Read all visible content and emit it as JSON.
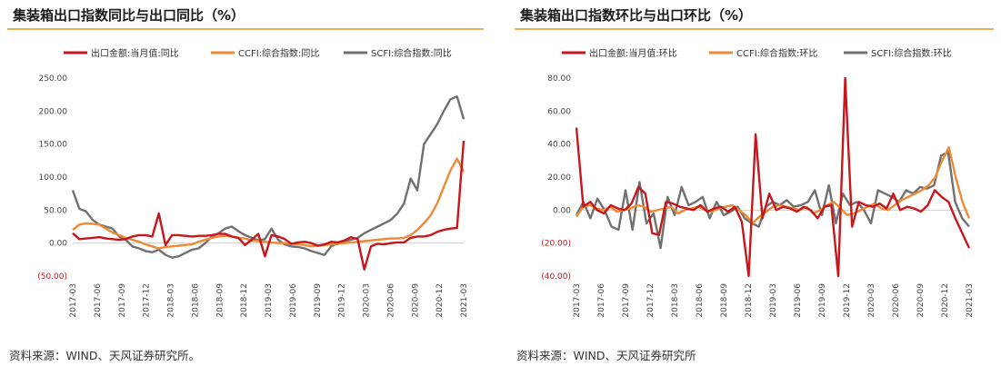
{
  "charts": [
    {
      "title": "集装箱出口指数同比与出口同比（%）",
      "source": "资料来源：WIND、天风证券研究所。"
    },
    {
      "title": "集装箱出口指数环比与出口环比（%）",
      "source": "资料来源：WIND、天风证券研究所"
    }
  ],
  "colors": {
    "export": "#c8161d",
    "ccfi": "#ee8a35",
    "scfi": "#707070",
    "rule": "#e8b25a"
  },
  "chart_data": [
    {
      "type": "line",
      "title": "集装箱出口指数同比与出口同比（%）",
      "x_ticks": [
        "2017-03",
        "2017-06",
        "2017-09",
        "2017-12",
        "2018-03",
        "2018-06",
        "2018-09",
        "2018-12",
        "2019-03",
        "2019-06",
        "2019-09",
        "2019-12",
        "2020-03",
        "2020-06",
        "2020-09",
        "2020-12",
        "2021-03"
      ],
      "ylim": [
        -50,
        250
      ],
      "y_ticks": [
        "(50.00)",
        "0.00",
        "50.00",
        "100.00",
        "150.00",
        "200.00",
        "250.00"
      ],
      "y_tick_values": [
        -50,
        0,
        50,
        100,
        150,
        200,
        250
      ],
      "x_start": "2017-03",
      "legend_position": "top",
      "series": [
        {
          "name": "出口金额:当月值:同比",
          "color_key": "export",
          "values": [
            15,
            6,
            7,
            8,
            9,
            7,
            6,
            5,
            6,
            10,
            12,
            12,
            10,
            45,
            -3,
            12,
            12,
            11,
            10,
            11,
            11,
            12,
            14,
            14,
            10,
            8,
            -3,
            5,
            14,
            -20,
            12,
            10,
            6,
            -1,
            1,
            2,
            0,
            -4,
            -2,
            2,
            1,
            4,
            9,
            6,
            -40,
            -5,
            -1,
            -2,
            0,
            1,
            1,
            8,
            10,
            10,
            12,
            17,
            20,
            22,
            23,
            155
          ]
        },
        {
          "name": "CCFI:综合指数:同比",
          "color_key": "ccfi",
          "values": [
            20,
            28,
            30,
            29,
            28,
            22,
            16,
            12,
            8,
            5,
            2,
            -2,
            -5,
            -8,
            -6,
            -5,
            -4,
            -3,
            -2,
            2,
            5,
            8,
            10,
            11,
            10,
            8,
            7,
            4,
            3,
            2,
            1,
            0,
            0,
            -1,
            -2,
            -3,
            -5,
            -4,
            -3,
            -2,
            -1,
            0,
            1,
            2,
            3,
            4,
            5,
            6,
            7,
            7,
            8,
            12,
            20,
            30,
            42,
            60,
            85,
            110,
            128,
            108
          ]
        },
        {
          "name": "SCFI:综合指数:同比",
          "color_key": "scfi",
          "values": [
            80,
            52,
            48,
            35,
            28,
            25,
            22,
            10,
            5,
            -5,
            -8,
            -12,
            -14,
            -10,
            -18,
            -22,
            -20,
            -15,
            -10,
            -8,
            0,
            10,
            15,
            22,
            25,
            18,
            12,
            8,
            4,
            6,
            22,
            5,
            -2,
            -5,
            -6,
            -8,
            -12,
            -15,
            -18,
            -5,
            0,
            3,
            5,
            8,
            15,
            20,
            25,
            30,
            35,
            45,
            60,
            98,
            80,
            150,
            165,
            180,
            200,
            218,
            222,
            188
          ]
        }
      ]
    },
    {
      "type": "line",
      "title": "集装箱出口指数环比与出口环比（%）",
      "x_ticks": [
        "2017-03",
        "2017-06",
        "2017-09",
        "2017-12",
        "2018-03",
        "2018-06",
        "2018-09",
        "2018-12",
        "2019-03",
        "2019-06",
        "2019-09",
        "2019-12",
        "2020-03",
        "2020-06",
        "2020-09",
        "2020-12",
        "2021-03"
      ],
      "ylim": [
        -40,
        80
      ],
      "y_ticks": [
        "(40.00)",
        "(20.00)",
        "0.00",
        "20.00",
        "40.00",
        "60.00",
        "80.00"
      ],
      "y_tick_values": [
        -40,
        -20,
        0,
        20,
        40,
        60,
        80
      ],
      "x_start": "2017-03",
      "legend_position": "top",
      "series": [
        {
          "name": "出口金额:当月值:环比",
          "color_key": "export",
          "values": [
            50,
            2,
            5,
            0,
            -2,
            3,
            1,
            0,
            4,
            14,
            10,
            -14,
            -15,
            5,
            4,
            2,
            1,
            0,
            3,
            -1,
            1,
            2,
            -1,
            2,
            -7,
            -40,
            46,
            -5,
            10,
            0,
            2,
            1,
            -1,
            2,
            0,
            -5,
            2,
            3,
            -40,
            80,
            -10,
            5,
            3,
            2,
            4,
            1,
            10,
            0,
            2,
            1,
            -1,
            3,
            12,
            8,
            5,
            -5,
            -14,
            -23
          ]
        },
        {
          "name": "CCFI:综合指数:环比",
          "color_key": "ccfi",
          "values": [
            -4,
            2,
            3,
            1,
            0,
            2,
            -1,
            0,
            1,
            3,
            2,
            -1,
            0,
            1,
            2,
            -2,
            0,
            1,
            2,
            0,
            -1,
            1,
            2,
            3,
            0,
            -3,
            -8,
            -4,
            -1,
            2,
            3,
            2,
            1,
            0,
            2,
            -2,
            0,
            3,
            5,
            1,
            -3,
            -2,
            0,
            2,
            4,
            1,
            0,
            3,
            6,
            8,
            10,
            12,
            15,
            20,
            30,
            38,
            20,
            5,
            -5
          ]
        },
        {
          "name": "SCFI:综合指数:环比",
          "color_key": "scfi",
          "values": [
            -3,
            5,
            -5,
            7,
            0,
            -10,
            -12,
            12,
            -12,
            17,
            -8,
            -2,
            -23,
            8,
            -3,
            14,
            3,
            5,
            8,
            -5,
            5,
            -3,
            -1,
            2,
            -5,
            -8,
            -10,
            2,
            5,
            3,
            6,
            2,
            3,
            5,
            12,
            -3,
            15,
            -8,
            10,
            3,
            5,
            0,
            -8,
            12,
            10,
            8,
            5,
            12,
            10,
            14,
            13,
            15,
            33,
            35,
            5,
            -5,
            -10
          ]
        }
      ]
    }
  ]
}
